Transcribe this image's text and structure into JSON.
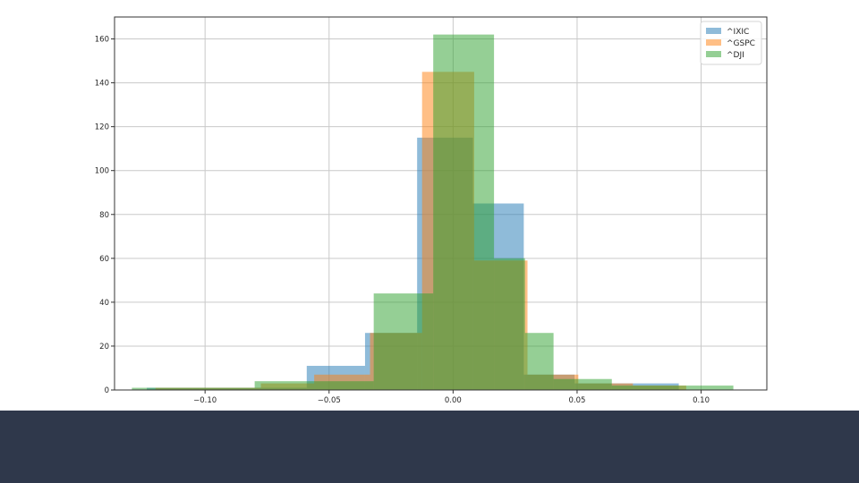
{
  "colors": {
    "background": "#ffffff",
    "footer_band": "#2f384b",
    "grid": "#c9c9c9",
    "axes": "#333333"
  },
  "chart_data": {
    "type": "histogram",
    "title": "",
    "xlabel": "",
    "ylabel": "",
    "xlim": [
      -0.1365,
      0.1265
    ],
    "ylim": [
      0,
      170
    ],
    "grid": true,
    "legend_position": "top-right",
    "x_ticks": [
      -0.1,
      -0.05,
      0.0,
      0.05,
      0.1
    ],
    "x_tick_labels": [
      "−0.10",
      "−0.05",
      "0.00",
      "0.05",
      "0.10"
    ],
    "y_ticks": [
      0,
      20,
      40,
      60,
      80,
      100,
      120,
      140,
      160
    ],
    "y_tick_labels": [
      "0",
      "20",
      "40",
      "60",
      "80",
      "100",
      "120",
      "140",
      "160"
    ],
    "series": [
      {
        "name": "^IXIC",
        "color": "#1f77b4",
        "opacity": 0.5,
        "bin_edges": [
          -0.1235,
          -0.102,
          -0.0805,
          -0.059,
          -0.0355,
          -0.0145,
          0.008,
          0.0285,
          0.049,
          0.0695,
          0.091
        ],
        "counts": [
          1,
          1,
          1,
          11,
          26,
          115,
          85,
          7,
          3,
          3
        ]
      },
      {
        "name": "^GSPC",
        "color": "#ff7f0e",
        "opacity": 0.5,
        "bin_edges": [
          -0.12,
          -0.0985,
          -0.0775,
          -0.056,
          -0.0335,
          -0.0125,
          0.0085,
          0.03,
          0.0505,
          0.0725,
          0.094
        ],
        "counts": [
          1,
          1,
          3,
          7,
          26,
          145,
          59,
          7,
          3,
          2
        ]
      },
      {
        "name": "^DJI",
        "color": "#2ca02c",
        "opacity": 0.5,
        "bin_edges": [
          -0.1295,
          -0.105,
          -0.08,
          -0.032,
          -0.008,
          0.0165,
          0.029,
          0.0405,
          0.064,
          0.0885,
          0.113
        ],
        "counts": [
          1,
          1,
          4,
          44,
          162,
          60,
          26,
          5,
          2,
          2
        ]
      }
    ]
  }
}
